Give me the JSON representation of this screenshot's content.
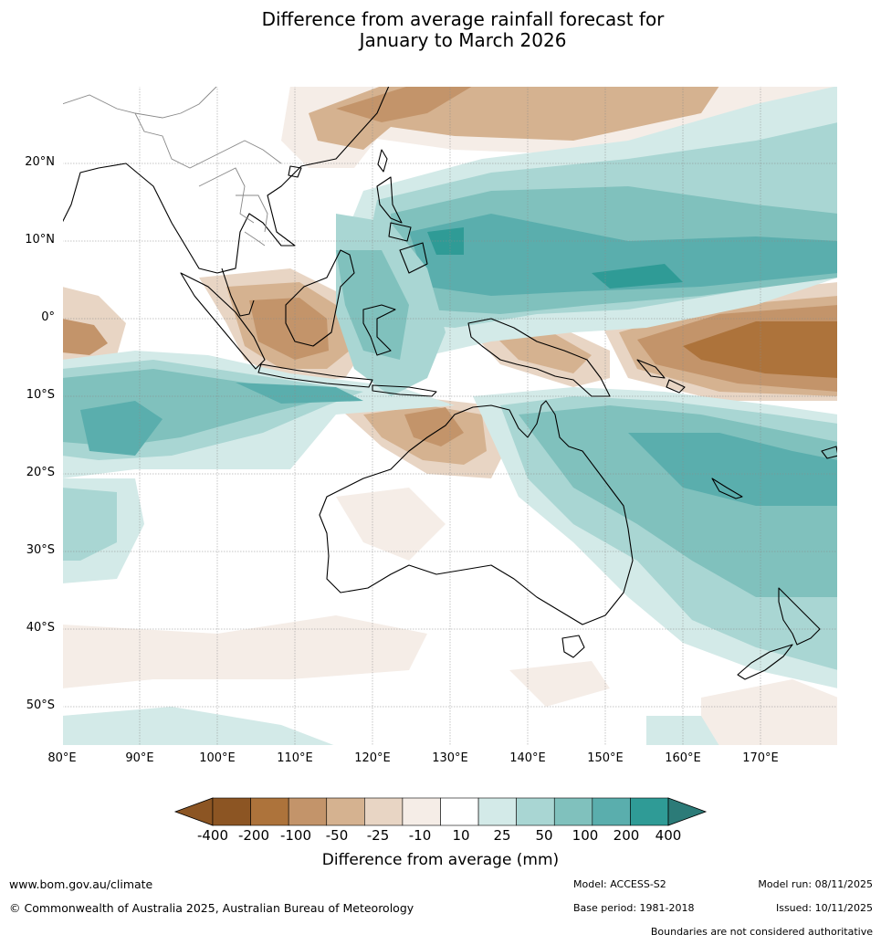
{
  "title": {
    "line1": "Difference from average rainfall forecast for",
    "line2": "January to March 2026"
  },
  "map": {
    "region": "Maritime Continent, Australia and South-West Pacific",
    "lon_range": [
      80,
      180
    ],
    "lat_range": [
      -55,
      30
    ],
    "lat_labels": [
      "20°N",
      "10°N",
      "0°",
      "10°S",
      "20°S",
      "30°S",
      "40°S",
      "50°S"
    ],
    "lon_labels": [
      "80°E",
      "90°E",
      "100°E",
      "110°E",
      "120°E",
      "130°E",
      "140°E",
      "150°E",
      "160°E",
      "170°E"
    ]
  },
  "legend": {
    "bins": [
      {
        "label": "-400",
        "color": "#8c5523"
      },
      {
        "label": "-200",
        "color": "#ad733b"
      },
      {
        "label": "-100",
        "color": "#c3946a"
      },
      {
        "label": "-50",
        "color": "#d5b290"
      },
      {
        "label": "-25",
        "color": "#e8d5c4"
      },
      {
        "label": "-10",
        "color": "#f5ede7"
      },
      {
        "label": "10",
        "color": "#ffffff"
      },
      {
        "label": "25",
        "color": "#d3eae8"
      },
      {
        "label": "50",
        "color": "#a9d6d3"
      },
      {
        "label": "100",
        "color": "#80c1bd"
      },
      {
        "label": "200",
        "color": "#5aaead"
      },
      {
        "label": "400",
        "color": "#2f9b96"
      }
    ],
    "over_color": "#2c7b78",
    "unit_label": "Difference from average (mm)"
  },
  "footer": {
    "website": "www.bom.gov.au/climate",
    "copyright": "© Commonwealth of Australia 2025, Australian Bureau of Meteorology",
    "model": "Model: ACCESS-S2",
    "base_period": "Base period: 1981-2018",
    "model_run": "Model run: 08/11/2025",
    "issued": "Issued: 10/11/2025",
    "disclaimer": "Boundaries are not considered authoritative"
  }
}
